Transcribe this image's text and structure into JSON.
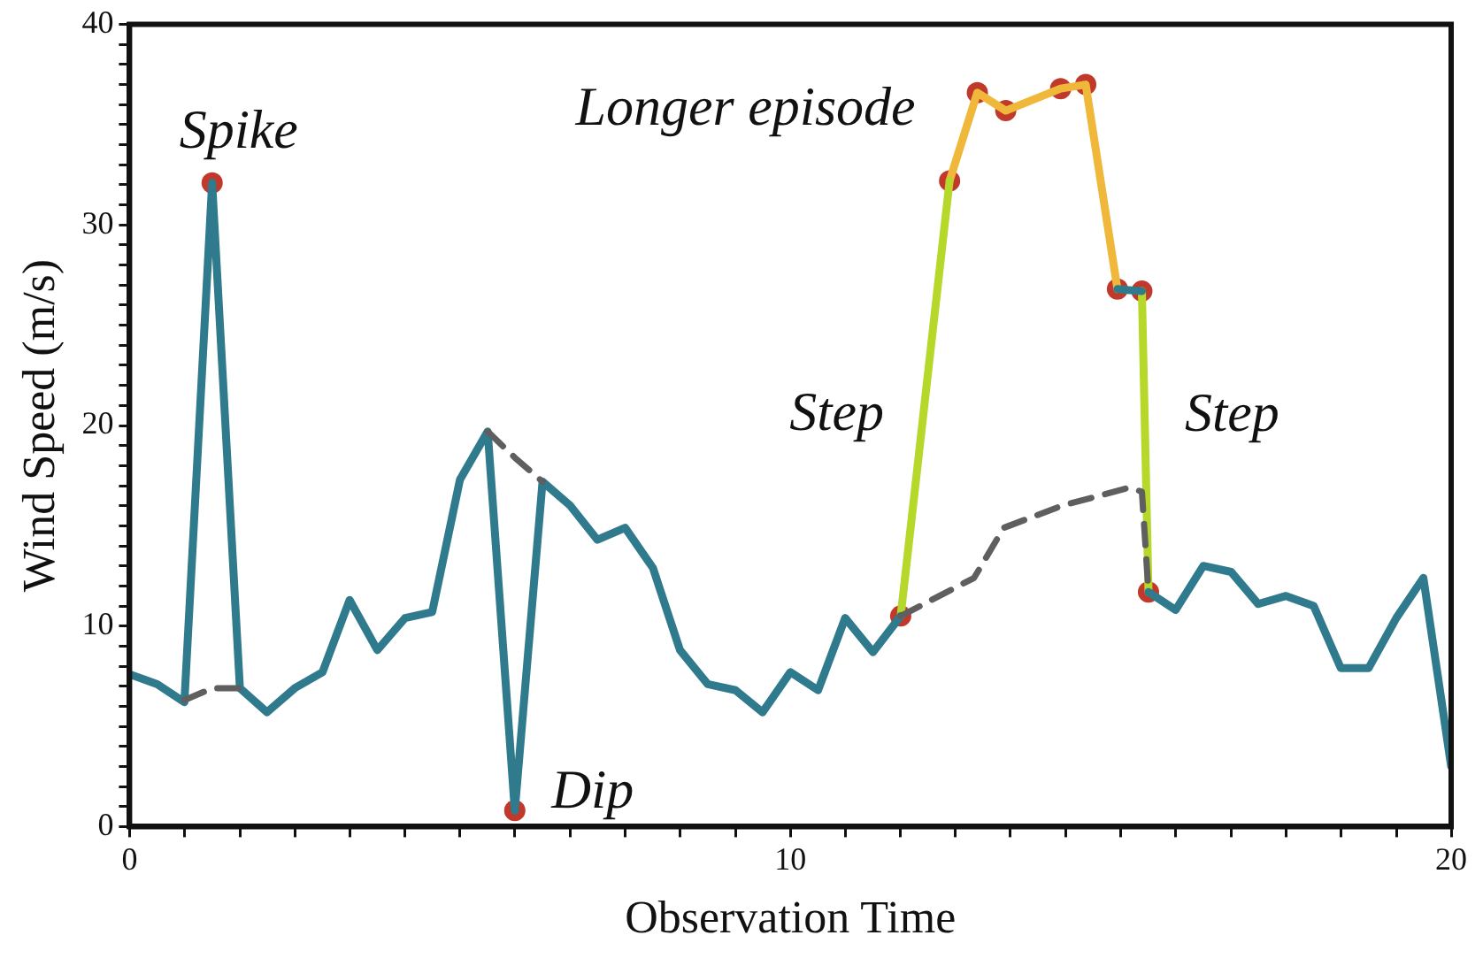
{
  "chart_data": {
    "type": "line",
    "xlabel": "Observation Time",
    "ylabel": "Wind Speed (m/s)",
    "xlim": [
      0,
      20
    ],
    "ylim": [
      0,
      40
    ],
    "xticks": [
      0,
      {
        "value": 0.83,
        "label": null
      },
      {
        "value": 1.67,
        "label": null
      },
      {
        "value": 2.5,
        "label": null
      },
      {
        "value": 3.33,
        "label": null
      },
      {
        "value": 4.17,
        "label": null
      },
      {
        "value": 5,
        "label": null
      },
      {
        "value": 5.83,
        "label": null
      },
      {
        "value": 6.67,
        "label": null
      },
      {
        "value": 7.5,
        "label": null
      },
      {
        "value": 8.33,
        "label": null
      },
      {
        "value": 9.17,
        "label": null
      },
      10,
      {
        "value": 10.83,
        "label": null
      },
      {
        "value": 11.67,
        "label": null
      },
      {
        "value": 12.5,
        "label": null
      },
      {
        "value": 13.33,
        "label": null
      },
      {
        "value": 14.17,
        "label": null
      },
      {
        "value": 15,
        "label": null
      },
      {
        "value": 15.83,
        "label": null
      },
      {
        "value": 16.67,
        "label": null
      },
      {
        "value": 17.5,
        "label": null
      },
      {
        "value": 18.33,
        "label": null
      },
      {
        "value": 19.17,
        "label": null
      },
      20
    ],
    "yticks": [
      0,
      {
        "value": 1,
        "label": null
      },
      {
        "value": 2,
        "label": null
      },
      {
        "value": 3,
        "label": null
      },
      {
        "value": 4,
        "label": null
      },
      {
        "value": 5,
        "label": null
      },
      {
        "value": 6,
        "label": null
      },
      {
        "value": 7,
        "label": null
      },
      {
        "value": 8,
        "label": null
      },
      {
        "value": 9,
        "label": null
      },
      10,
      {
        "value": 11,
        "label": null
      },
      {
        "value": 12,
        "label": null
      },
      {
        "value": 13,
        "label": null
      },
      {
        "value": 14,
        "label": null
      },
      {
        "value": 15,
        "label": null
      },
      {
        "value": 16,
        "label": null
      },
      {
        "value": 17,
        "label": null
      },
      {
        "value": 18,
        "label": null
      },
      {
        "value": 19,
        "label": null
      },
      20,
      {
        "value": 21,
        "label": null
      },
      {
        "value": 22,
        "label": null
      },
      {
        "value": 23,
        "label": null
      },
      {
        "value": 24,
        "label": null
      },
      {
        "value": 25,
        "label": null
      },
      {
        "value": 26,
        "label": null
      },
      {
        "value": 27,
        "label": null
      },
      {
        "value": 28,
        "label": null
      },
      {
        "value": 29,
        "label": null
      },
      30,
      {
        "value": 31,
        "label": null
      },
      {
        "value": 32,
        "label": null
      },
      {
        "value": 33,
        "label": null
      },
      {
        "value": 34,
        "label": null
      },
      {
        "value": 35,
        "label": null
      },
      {
        "value": 36,
        "label": null
      },
      {
        "value": 37,
        "label": null
      },
      {
        "value": 38,
        "label": null
      },
      {
        "value": 39,
        "label": null
      },
      40
    ],
    "grid": false,
    "legend": false,
    "marker": "none",
    "series": [
      {
        "color": "#5f5f5f",
        "line_style": "dashed",
        "x": [
          0.83,
          1.25,
          1.67,
          3,
          5.42,
          5.83,
          6.25,
          9,
          11.67,
          12.78,
          13.23,
          14.11,
          15.13,
          15.32,
          15.42
        ],
        "values": [
          6.3,
          6.9,
          6.9,
          null,
          19.7,
          18.4,
          17.2,
          null,
          10.5,
          12.4,
          14.9,
          16.0,
          16.9,
          16.7,
          11.7
        ]
      },
      {
        "color": "#2f7a8c",
        "x": [
          0,
          0.42,
          0.83,
          1.25,
          1.67,
          2.08,
          2.5,
          2.92,
          3.33,
          3.75,
          4.17,
          4.58,
          5,
          5.42,
          5.83,
          6.25,
          6.67,
          7.08,
          7.5,
          7.92,
          8.33,
          8.75,
          9.17,
          9.58,
          10,
          10.42,
          10.83,
          11.25,
          11.67,
          13,
          14.95,
          15.32,
          15.37,
          15.42,
          15.83,
          16.25,
          16.67,
          17.08,
          17.5,
          17.92,
          18.33,
          18.75,
          19.17,
          19.58,
          20
        ],
        "values": [
          7.6,
          7.1,
          6.2,
          32.1,
          6.9,
          5.7,
          6.9,
          7.7,
          11.3,
          8.8,
          10.4,
          10.7,
          17.3,
          19.7,
          0.8,
          17.2,
          16.0,
          14.3,
          14.9,
          12.9,
          8.8,
          7.1,
          6.8,
          5.7,
          7.7,
          6.8,
          10.4,
          8.7,
          10.5,
          null,
          26.8,
          26.7,
          null,
          11.7,
          10.8,
          13.0,
          12.7,
          11.1,
          11.5,
          11.0,
          7.9,
          7.9,
          10.4,
          12.4,
          3
        ]
      },
      {
        "color": "#b5d82a",
        "x": [
          11.67,
          12.41,
          13.5,
          15.32,
          15.42
        ],
        "values": [
          10.5,
          32.2,
          null,
          26.7,
          11.7
        ]
      },
      {
        "color": "#f0b83a",
        "x": [
          12.41,
          12.83,
          13.26,
          14.09,
          14.47,
          14.95
        ],
        "values": [
          32.2,
          36.6,
          35.7,
          36.8,
          37.0,
          26.8
        ]
      },
      {
        "type": "scatter",
        "color": "#c0392b",
        "marker": "circle",
        "x": [
          1.25,
          5.83,
          11.67,
          12.41,
          12.83,
          13.26,
          14.09,
          14.47,
          14.95,
          15.32,
          15.42
        ],
        "values": [
          32.1,
          0.8,
          10.5,
          32.2,
          36.6,
          35.7,
          36.8,
          37.0,
          26.8,
          26.7,
          11.7
        ]
      }
    ],
    "annotations": [
      {
        "text": "Spike",
        "x": 1.25,
        "y": 32.1
      },
      {
        "text": "Dip",
        "x": 5.83,
        "y": 0.8
      },
      {
        "text": "Longer episode",
        "x": 12.83,
        "y": 36.6
      },
      {
        "text": "Step",
        "x": 12.04,
        "y": 21.4
      },
      {
        "text": "Step",
        "x": 15.32,
        "y": 26.7
      }
    ]
  }
}
